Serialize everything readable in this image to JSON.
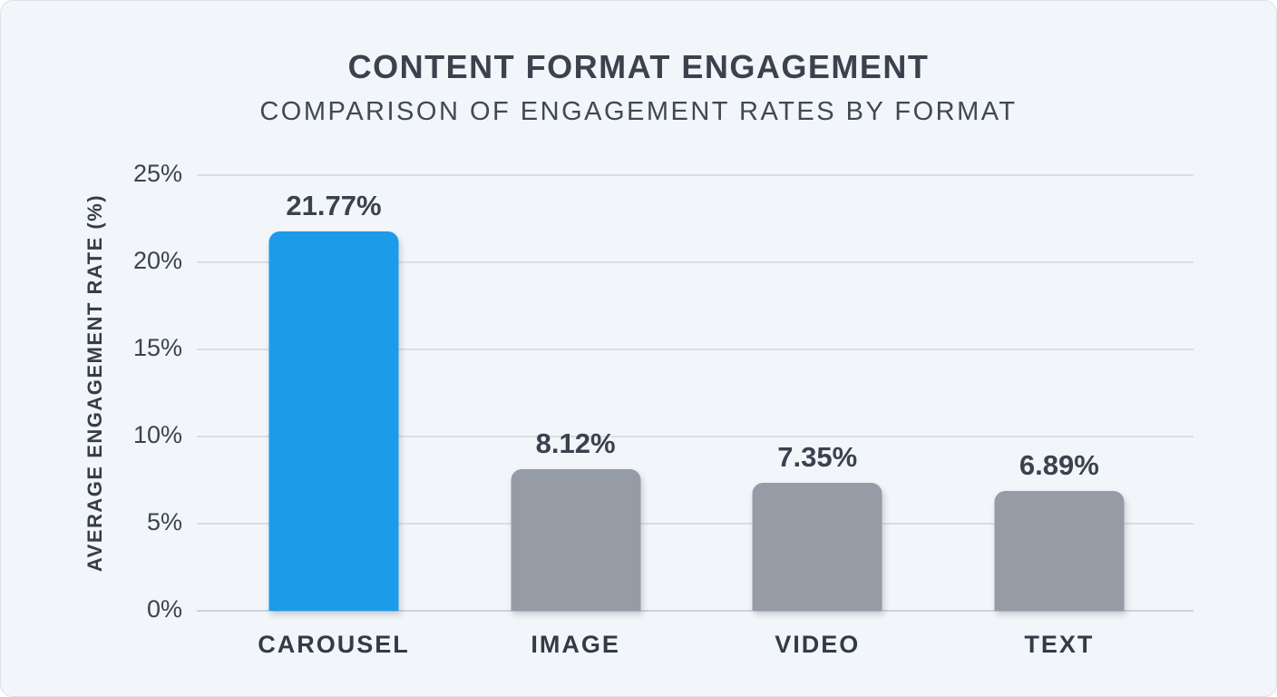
{
  "page": {
    "background_color": "#f2f5f9"
  },
  "header": {
    "title": "CONTENT FORMAT ENGAGEMENT",
    "subtitle": "COMPARISON OF ENGAGEMENT RATES BY FORMAT"
  },
  "chart_data": {
    "type": "bar",
    "title": "CONTENT FORMAT ENGAGEMENT",
    "subtitle": "COMPARISON OF ENGAGEMENT RATES BY FORMAT",
    "xlabel": "",
    "ylabel": "AVERAGE ENGAGEMENT RATE (%)",
    "ylim": [
      0,
      25
    ],
    "yticks": [
      {
        "value": 25,
        "label": "25%"
      },
      {
        "value": 20,
        "label": "20%"
      },
      {
        "value": 15,
        "label": "15%"
      },
      {
        "value": 10,
        "label": "10%"
      },
      {
        "value": 5,
        "label": "5%"
      },
      {
        "value": 0,
        "label": "0%"
      }
    ],
    "grid": "horizontal",
    "legend": "none",
    "categories": [
      "CAROUSEL",
      "IMAGE",
      "VIDEO",
      "TEXT"
    ],
    "values": [
      21.77,
      8.12,
      7.35,
      6.89
    ],
    "value_labels": [
      "21.77%",
      "8.12%",
      "7.35%",
      "6.89%"
    ],
    "bar_colors": [
      "#1c9be9",
      "#969ca6",
      "#969ca6",
      "#969ca6"
    ],
    "highlight_color": "#1c9be9",
    "default_bar_color": "#969ca6"
  }
}
